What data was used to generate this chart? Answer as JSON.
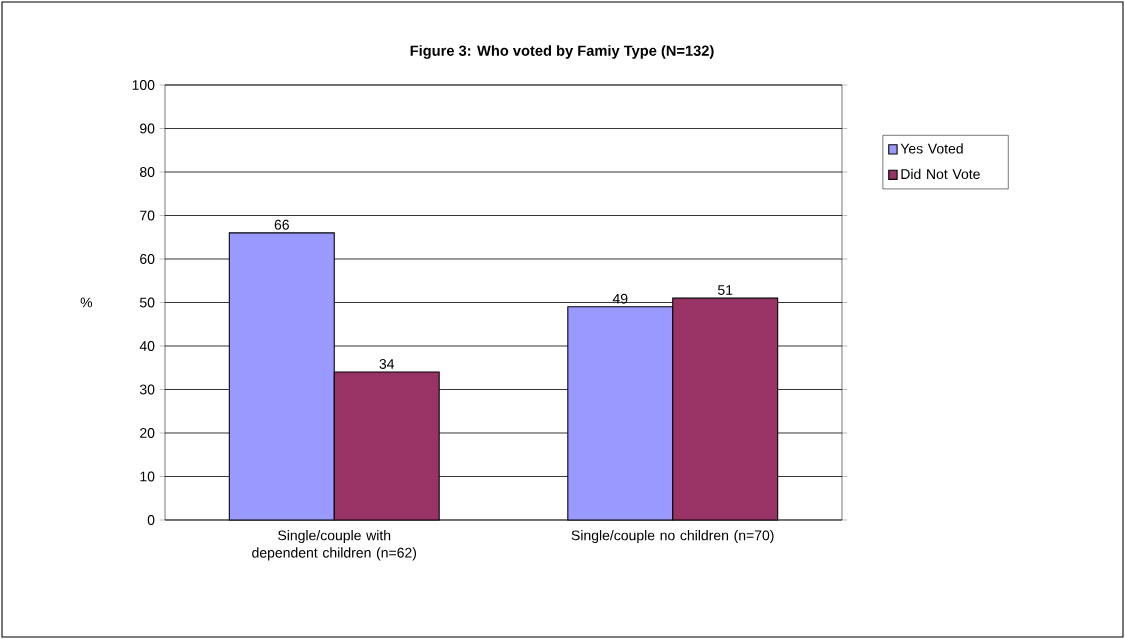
{
  "chart_data": {
    "type": "bar",
    "title": "Figure 3: Who voted by Famiy Type (N=132)",
    "ylabel": "%",
    "categories": [
      "Single/couple with dependent children (n=62)",
      "Single/couple no children (n=70)"
    ],
    "series": [
      {
        "name": "Yes Voted",
        "color": "#9999ff",
        "values": [
          66,
          49
        ]
      },
      {
        "name": "Did Not Vote",
        "color": "#993366",
        "values": [
          34,
          51
        ]
      }
    ],
    "ylim": [
      0,
      100
    ],
    "yticks": [
      0,
      10,
      20,
      30,
      40,
      50,
      60,
      70,
      80,
      90,
      100
    ],
    "grid": "y",
    "legend": "right",
    "data_labels": true
  }
}
